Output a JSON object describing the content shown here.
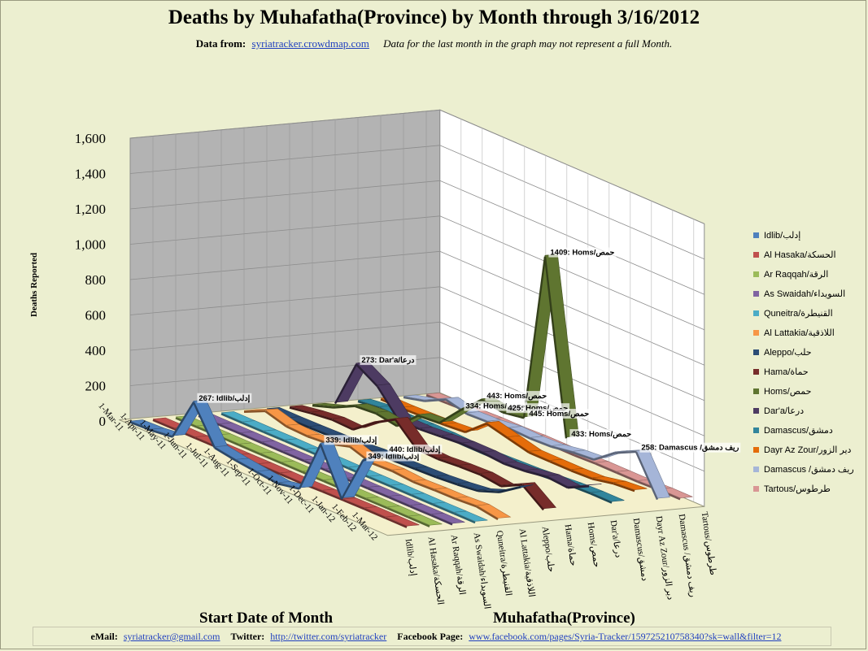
{
  "header": {
    "title": "Deaths by Muhafatha(Province) by Month through 3/16/2012",
    "source_label": "Data from:",
    "source_link": "syriatracker.crowdmap.com",
    "note": "Data for the last month  in the graph may not represent a full Month."
  },
  "footer": {
    "email_label": "eMail:",
    "email": "syriatracker@gmail.com",
    "twitter_label": "Twitter:",
    "twitter": "http://twitter.com/syriatracker",
    "facebook_label": "Facebook  Page:",
    "facebook": "www.facebook.com/pages/Syria-Tracker/159725210758340?sk=wall&filter=12"
  },
  "chart_data": {
    "type": "line",
    "subtype": "3d-line",
    "title": "Deaths by Muhafatha(Province) by Month through 3/16/2012",
    "xlabel": "Start Date of Month",
    "ylabel": "Deaths Reported",
    "zlabel": "Muhafatha(Province)",
    "ylim": [
      0,
      1600
    ],
    "yticks": [
      "0",
      "200",
      "400",
      "600",
      "800",
      "1,000",
      "1,200",
      "1,400",
      "1,600"
    ],
    "categories": [
      "1-Mar-11",
      "1-Apr-11",
      "1-May-11",
      "1-Jun-11",
      "1-Jul-11",
      "1-Aug-11",
      "1-Sep-11",
      "1-Oct-11",
      "1-Nov-11",
      "1-Dec-11",
      "1-Jan-12",
      "1-Feb-12",
      "1-Mar-12"
    ],
    "grid": true,
    "legend_position": "right",
    "series": [
      {
        "name": "Idlib/إدلب",
        "depth_label": "Idlib/إدلب",
        "color": "#4f81bd",
        "values": [
          0,
          5,
          20,
          267,
          60,
          40,
          25,
          12,
          35,
          339,
          80,
          349,
          440
        ]
      },
      {
        "name": "Al Hasaka/الحسكة",
        "depth_label": "Al Hasaka/الحسكة",
        "color": "#c0504d",
        "values": [
          0,
          1,
          1,
          2,
          3,
          4,
          4,
          4,
          8,
          10,
          12,
          12,
          12
        ]
      },
      {
        "name": "Ar Raqqah/الرقة",
        "depth_label": "Ar Raqqah/الرقة",
        "color": "#9bbb59",
        "values": [
          0,
          0,
          1,
          1,
          1,
          2,
          2,
          3,
          3,
          4,
          5,
          5,
          5
        ]
      },
      {
        "name": "As Swaidah/السويداء",
        "depth_label": "As Swaidah/السويداء",
        "color": "#8064a2",
        "values": [
          0,
          0,
          1,
          1,
          1,
          2,
          2,
          2,
          2,
          3,
          3,
          4,
          4
        ]
      },
      {
        "name": "Quneitra/القنيطرة",
        "depth_label": "Quneitra/القنيطرة",
        "color": "#4bacc6",
        "values": [
          0,
          0,
          0,
          1,
          1,
          1,
          1,
          1,
          2,
          2,
          2,
          3,
          3
        ]
      },
      {
        "name": "Al Lattakia/اللاذقية",
        "depth_label": "Al Lattakia/اللاذقية",
        "color": "#f79646",
        "values": [
          0,
          55,
          20,
          15,
          25,
          60,
          20,
          25,
          15,
          20,
          22,
          30,
          10
        ]
      },
      {
        "name": "Aleppo/حلب",
        "depth_label": "Aleppo/حلب",
        "color": "#2c4d75",
        "values": [
          0,
          0,
          2,
          5,
          10,
          20,
          20,
          25,
          30,
          40,
          55,
          100,
          180
        ]
      },
      {
        "name": "Hama/حماة",
        "depth_label": "Hama/حماة",
        "color": "#772c2a",
        "values": [
          0,
          20,
          35,
          30,
          120,
          190,
          75,
          70,
          80,
          85,
          70,
          130,
          40
        ]
      },
      {
        "name": "Homs/حمص",
        "depth_label": "Homs/حمص",
        "color": "#5f7530",
        "values": [
          0,
          40,
          100,
          110,
          90,
          200,
          210,
          334,
          443,
          425,
          445,
          1409,
          433
        ]
      },
      {
        "name": "Dar'a/درعا",
        "depth_label": "Dar'a/درعا",
        "color": "#4d3b62",
        "values": [
          0,
          273,
          200,
          60,
          60,
          70,
          80,
          80,
          70,
          80,
          100,
          90,
          150
        ]
      },
      {
        "name": "Damascus/دمشق",
        "depth_label": "Damascus/دمشق",
        "color": "#31859c",
        "values": [
          0,
          15,
          10,
          15,
          15,
          10,
          10,
          15,
          20,
          30,
          40,
          45,
          45
        ]
      },
      {
        "name": "Dayr Az Zour/دير الزور",
        "depth_label": "Dayr Az Zour/دير الزور",
        "color": "#e46c0a",
        "values": [
          0,
          0,
          5,
          10,
          20,
          120,
          90,
          60,
          60,
          60,
          65,
          90,
          100
        ]
      },
      {
        "name": "Damascus /ريف دمشق",
        "depth_label": "Damascus /ريف دمشق",
        "color": "#a5b5d8",
        "values": [
          0,
          30,
          90,
          60,
          65,
          80,
          75,
          80,
          100,
          110,
          200,
          258,
          40
        ]
      },
      {
        "name": "Tartous/طرطوس",
        "depth_label": "Tartous/طرطوس",
        "color": "#d99694",
        "values": [
          0,
          5,
          10,
          15,
          15,
          20,
          20,
          20,
          25,
          25,
          25,
          30,
          30
        ]
      }
    ],
    "annotations": [
      {
        "series": 0,
        "x": "1-Jun-11",
        "value": 267,
        "text": "267: Idlib/إدلب"
      },
      {
        "series": 0,
        "x": "1-Dec-11",
        "value": 339,
        "text": "339: Idlib/إدلب"
      },
      {
        "series": 0,
        "x": "1-Feb-12",
        "value": 349,
        "text": "349: Idlib/إدلب"
      },
      {
        "series": 0,
        "x": "1-Mar-12",
        "value": 440,
        "text": "440: Idlib/إدلب"
      },
      {
        "series": 9,
        "x": "1-Apr-11",
        "value": 273,
        "text": "273: Dar'a/درعا"
      },
      {
        "series": 8,
        "x": "1-Oct-11",
        "value": 334,
        "text": "334: Homs/حمص"
      },
      {
        "series": 8,
        "x": "1-Nov-11",
        "value": 443,
        "text": "443: Homs/حمص"
      },
      {
        "series": 8,
        "x": "1-Dec-11",
        "value": 425,
        "text": "425: Homs/حمص"
      },
      {
        "series": 8,
        "x": "1-Jan-12",
        "value": 445,
        "text": "445: Homs/حمص"
      },
      {
        "series": 8,
        "x": "1-Feb-12",
        "value": 1409,
        "text": "1409: Homs/حمص"
      },
      {
        "series": 8,
        "x": "1-Mar-12",
        "value": 433,
        "text": "433: Homs/حمص"
      },
      {
        "series": 12,
        "x": "1-Feb-12",
        "value": 258,
        "text": "258: Damascus /ريف دمشق"
      }
    ]
  }
}
